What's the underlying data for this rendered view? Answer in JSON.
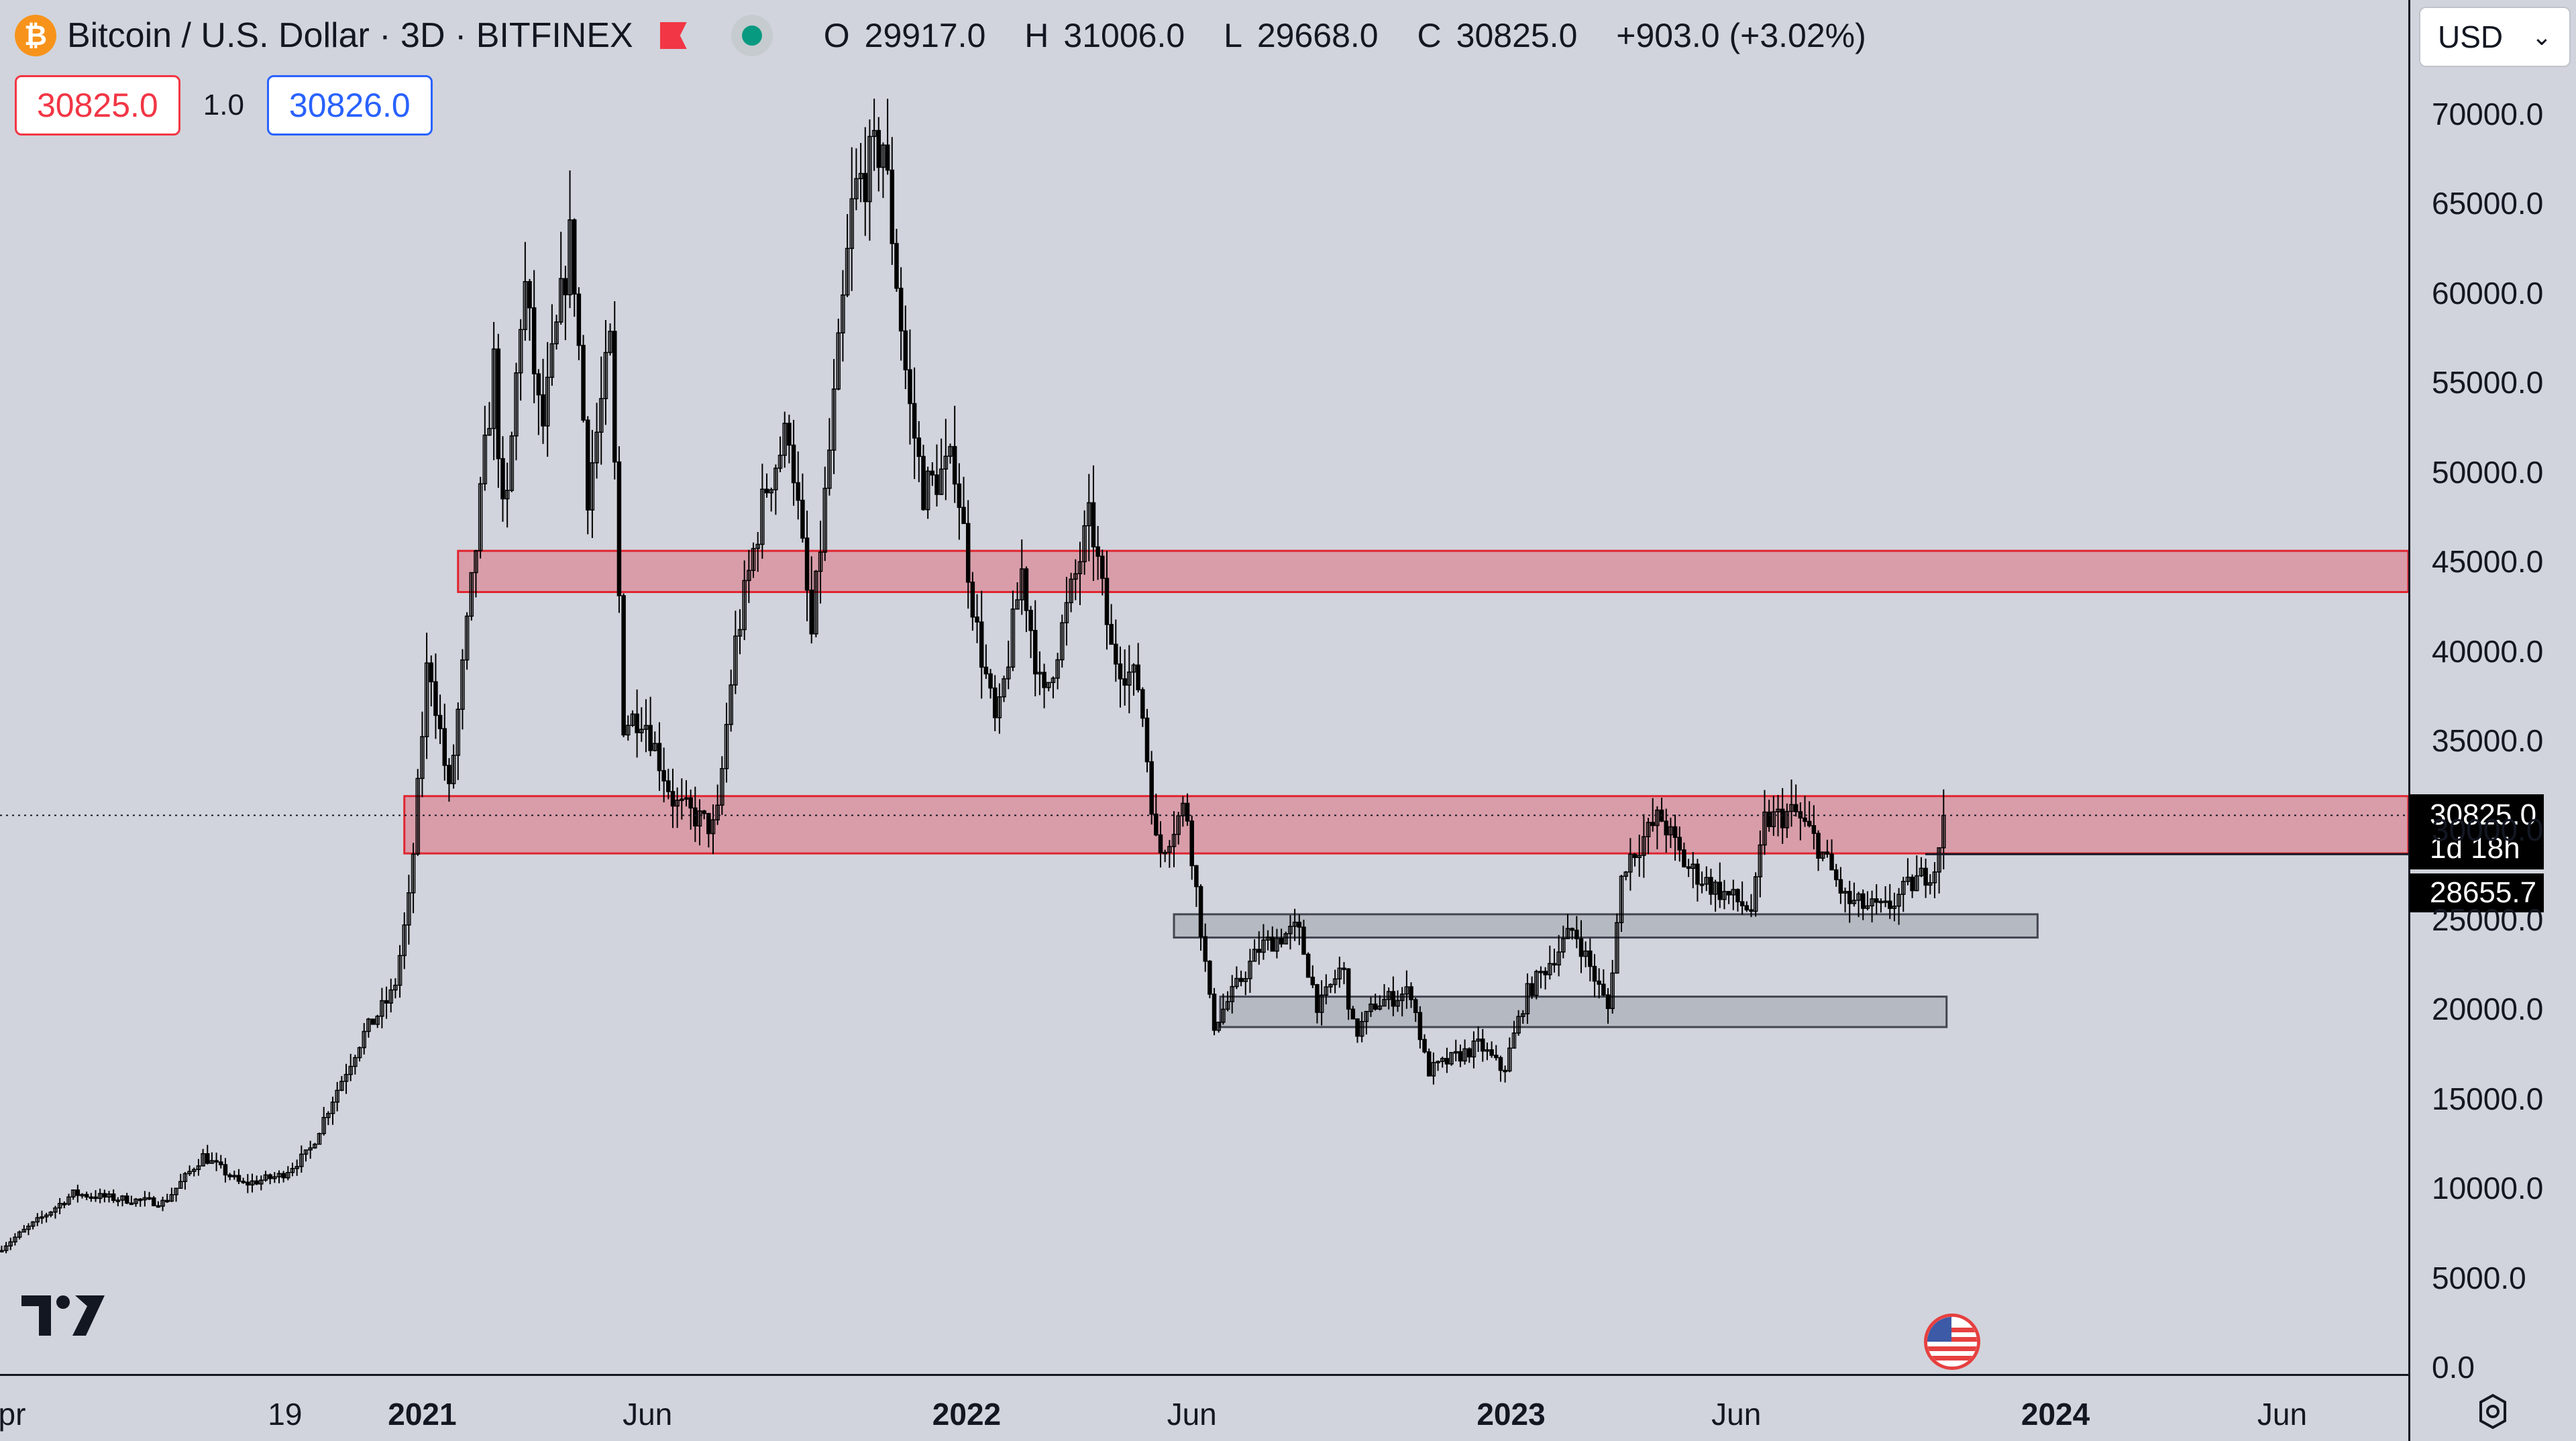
{
  "header": {
    "logo_glyph": "₿",
    "symbol_title": "Bitcoin / U.S. Dollar · 3D · BITFINEX",
    "ohlc": {
      "open_label": "O",
      "open": "29917.0",
      "high_label": "H",
      "high": "31006.0",
      "low_label": "L",
      "low": "29668.0",
      "close_label": "C",
      "close": "30825.0",
      "change": "+903.0 (+3.02%)"
    }
  },
  "order_panel": {
    "sell_price": "30825.0",
    "quantity": "1.0",
    "buy_price": "30826.0"
  },
  "currency_select": {
    "value": "USD",
    "chevron": "⌄"
  },
  "price_tags": {
    "last_price": "30825.0",
    "countdown": "1d 18h",
    "line_price": "28655.7"
  },
  "colors": {
    "background": "#d1d4dc",
    "candle": "#000000",
    "resistance_zone_fill": "#e05a6a",
    "resistance_zone_border": "#e0242f",
    "support_zone_fill": "#9ea3ac",
    "support_zone_border": "#434651",
    "sell": "#f23645",
    "buy": "#2962ff",
    "live_dot": "#089981"
  },
  "icons": {
    "logo": "bitcoin-logo-icon",
    "flag": "flag-icon",
    "live": "live-dot-icon",
    "tradingview": "tradingview-logo-icon",
    "country": "us-flag-icon",
    "settings": "settings-icon",
    "chevron": "chevron-down-icon"
  },
  "chart_data": {
    "type": "candlestick",
    "title": "Bitcoin / U.S. Dollar · 3D · BITFINEX",
    "interval": "3D",
    "ylim": [
      0,
      72000
    ],
    "y_ticks": [
      "70000.0",
      "65000.0",
      "60000.0",
      "55000.0",
      "50000.0",
      "45000.0",
      "40000.0",
      "35000.0",
      "30000.0",
      "25000.0",
      "20000.0",
      "15000.0",
      "10000.0",
      "5000.0",
      "0.0"
    ],
    "y_tick_values": [
      70000,
      65000,
      60000,
      55000,
      50000,
      45000,
      40000,
      35000,
      30000,
      25000,
      20000,
      15000,
      10000,
      5000,
      0
    ],
    "x_ticks": [
      {
        "label": "pr",
        "date": "2020-04-01"
      },
      {
        "label": "19",
        "date": "2020-10-01",
        "bold": false
      },
      {
        "label": "2021",
        "date": "2021-01-01",
        "bold": true
      },
      {
        "label": "Jun",
        "date": "2021-06-01"
      },
      {
        "label": "2022",
        "date": "2022-01-01",
        "bold": true
      },
      {
        "label": "Jun",
        "date": "2022-06-01"
      },
      {
        "label": "2023",
        "date": "2023-01-01",
        "bold": true
      },
      {
        "label": "Jun",
        "date": "2023-06-01"
      },
      {
        "label": "2024",
        "date": "2024-01-01",
        "bold": true
      },
      {
        "label": "Jun",
        "date": "2024-06-01"
      }
    ],
    "last_close": 30825.0,
    "horizontal_line": 28655.7,
    "zones": [
      {
        "kind": "resistance",
        "start": "2020-12-20",
        "end": "2024-09-30",
        "low": 28700,
        "high": 31900
      },
      {
        "kind": "resistance",
        "start": "2021-01-25",
        "end": "2024-09-30",
        "low": 43300,
        "high": 45600
      },
      {
        "kind": "support",
        "start": "2022-05-20",
        "end": "2023-12-20",
        "low": 24000,
        "high": 25300
      },
      {
        "kind": "support",
        "start": "2022-06-20",
        "end": "2023-10-20",
        "low": 19000,
        "high": 20700
      }
    ],
    "price_path": [
      [
        "2020-03-25",
        6500
      ],
      [
        "2020-05-01",
        8800
      ],
      [
        "2020-05-15",
        9700
      ],
      [
        "2020-06-15",
        9400
      ],
      [
        "2020-07-15",
        9200
      ],
      [
        "2020-08-10",
        11800
      ],
      [
        "2020-09-05",
        10200
      ],
      [
        "2020-10-01",
        10700
      ],
      [
        "2020-10-20",
        12000
      ],
      [
        "2020-11-05",
        15000
      ],
      [
        "2020-11-25",
        18500
      ],
      [
        "2020-12-16",
        21000
      ],
      [
        "2020-12-27",
        26500
      ],
      [
        "2021-01-08",
        40000
      ],
      [
        "2021-01-22",
        32000
      ],
      [
        "2021-02-08",
        45000
      ],
      [
        "2021-02-21",
        56000
      ],
      [
        "2021-02-28",
        46000
      ],
      [
        "2021-03-13",
        61000
      ],
      [
        "2021-03-25",
        52000
      ],
      [
        "2021-04-14",
        63500
      ],
      [
        "2021-04-25",
        49000
      ],
      [
        "2021-05-10",
        57000
      ],
      [
        "2021-05-19",
        36000
      ],
      [
        "2021-06-01",
        36500
      ],
      [
        "2021-06-22",
        31500
      ],
      [
        "2021-07-20",
        30000
      ],
      [
        "2021-08-01",
        40000
      ],
      [
        "2021-08-22",
        49000
      ],
      [
        "2021-09-07",
        52500
      ],
      [
        "2021-09-22",
        40800
      ],
      [
        "2021-10-05",
        52000
      ],
      [
        "2021-10-20",
        65500
      ],
      [
        "2021-11-09",
        68500
      ],
      [
        "2021-11-26",
        54000
      ],
      [
        "2021-12-06",
        49000
      ],
      [
        "2021-12-27",
        50500
      ],
      [
        "2022-01-10",
        41500
      ],
      [
        "2022-01-24",
        35500
      ],
      [
        "2022-02-10",
        44500
      ],
      [
        "2022-02-24",
        37000
      ],
      [
        "2022-03-28",
        47500
      ],
      [
        "2022-04-11",
        40000
      ],
      [
        "2022-04-30",
        38000
      ],
      [
        "2022-05-12",
        28500
      ],
      [
        "2022-05-31",
        31500
      ],
      [
        "2022-06-18",
        19000
      ],
      [
        "2022-07-20",
        23500
      ],
      [
        "2022-08-14",
        24500
      ],
      [
        "2022-08-28",
        20000
      ],
      [
        "2022-09-13",
        22500
      ],
      [
        "2022-09-21",
        18500
      ],
      [
        "2022-10-05",
        20300
      ],
      [
        "2022-10-29",
        21000
      ],
      [
        "2022-11-09",
        16500
      ],
      [
        "2022-12-14",
        18000
      ],
      [
        "2022-12-30",
        16500
      ],
      [
        "2023-01-14",
        20800
      ],
      [
        "2023-02-15",
        24500
      ],
      [
        "2023-03-10",
        20000
      ],
      [
        "2023-03-20",
        28000
      ],
      [
        "2023-04-14",
        30800
      ],
      [
        "2023-05-01",
        28000
      ],
      [
        "2023-05-20",
        26800
      ],
      [
        "2023-06-15",
        25500
      ],
      [
        "2023-06-23",
        30500
      ],
      [
        "2023-07-13",
        31000
      ],
      [
        "2023-07-28",
        29300
      ],
      [
        "2023-08-17",
        26000
      ],
      [
        "2023-09-11",
        25500
      ],
      [
        "2023-09-30",
        27000
      ],
      [
        "2023-10-16",
        28000
      ],
      [
        "2023-10-20",
        30825
      ]
    ]
  }
}
